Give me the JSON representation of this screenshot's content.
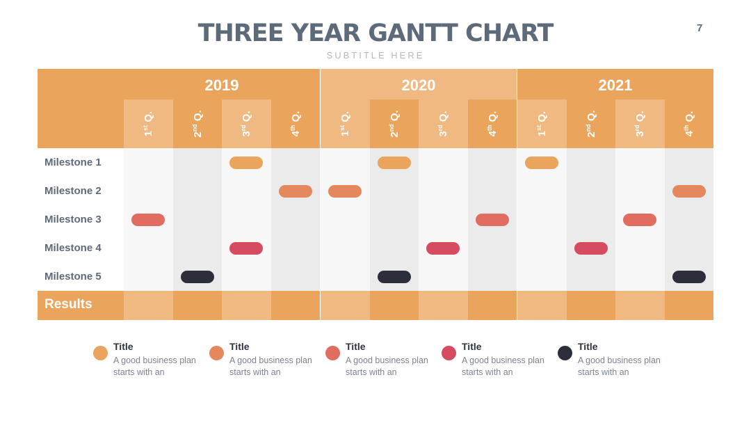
{
  "slide": {
    "title": "THREE YEAR GANTT CHART",
    "subtitle": "SUBTITLE HERE",
    "page_number": "7"
  },
  "colors": {
    "header_dark": "#eba45b",
    "header_light": "#efb981",
    "body_light": "#f7f7f8",
    "body_dark": "#ebebec",
    "label_text": "#5d6a7a"
  },
  "chart_data": {
    "type": "gantt",
    "years": [
      "2019",
      "2020",
      "2021"
    ],
    "quarters": [
      {
        "num": "1",
        "sup": "st",
        "suffix": " Q."
      },
      {
        "num": "2",
        "sup": "nd",
        "suffix": " Q."
      },
      {
        "num": "3",
        "sup": "rd",
        "suffix": " Q."
      },
      {
        "num": "4",
        "sup": "th",
        "suffix": " Q."
      }
    ],
    "rows": [
      "Milestone 1",
      "Milestone 2",
      "Milestone 3",
      "Milestone 4",
      "Milestone 5"
    ],
    "results_label": "Results",
    "bars": [
      {
        "row": 0,
        "year": "2019",
        "quarter": 3,
        "series": 0
      },
      {
        "row": 0,
        "year": "2020",
        "quarter": 2,
        "series": 0
      },
      {
        "row": 0,
        "year": "2021",
        "quarter": 1,
        "series": 0
      },
      {
        "row": 1,
        "year": "2019",
        "quarter": 4,
        "series": 1
      },
      {
        "row": 1,
        "year": "2020",
        "quarter": 1,
        "series": 1
      },
      {
        "row": 1,
        "year": "2021",
        "quarter": 4,
        "series": 1
      },
      {
        "row": 2,
        "year": "2019",
        "quarter": 1,
        "series": 2
      },
      {
        "row": 2,
        "year": "2020",
        "quarter": 4,
        "series": 2
      },
      {
        "row": 2,
        "year": "2021",
        "quarter": 3,
        "series": 2
      },
      {
        "row": 3,
        "year": "2019",
        "quarter": 3,
        "series": 3
      },
      {
        "row": 3,
        "year": "2020",
        "quarter": 3,
        "series": 3
      },
      {
        "row": 3,
        "year": "2021",
        "quarter": 2,
        "series": 3
      },
      {
        "row": 4,
        "year": "2019",
        "quarter": 2,
        "series": 4
      },
      {
        "row": 4,
        "year": "2020",
        "quarter": 2,
        "series": 4
      },
      {
        "row": 4,
        "year": "2021",
        "quarter": 4,
        "series": 4
      }
    ],
    "series_colors": [
      "#eba45b",
      "#e4895d",
      "#e06d5f",
      "#d64b5f",
      "#2c2f3b"
    ]
  },
  "legend": [
    {
      "title": "Title",
      "text": "A good business plan starts with an",
      "color": "#eba45b"
    },
    {
      "title": "Title",
      "text": "A good business plan starts with an",
      "color": "#e4895d"
    },
    {
      "title": "Title",
      "text": "A good business plan starts with an",
      "color": "#e06d5f"
    },
    {
      "title": "Title",
      "text": "A good business plan starts with an",
      "color": "#d64b5f"
    },
    {
      "title": "Title",
      "text": "A good business plan starts with an",
      "color": "#2c2f3b"
    }
  ]
}
